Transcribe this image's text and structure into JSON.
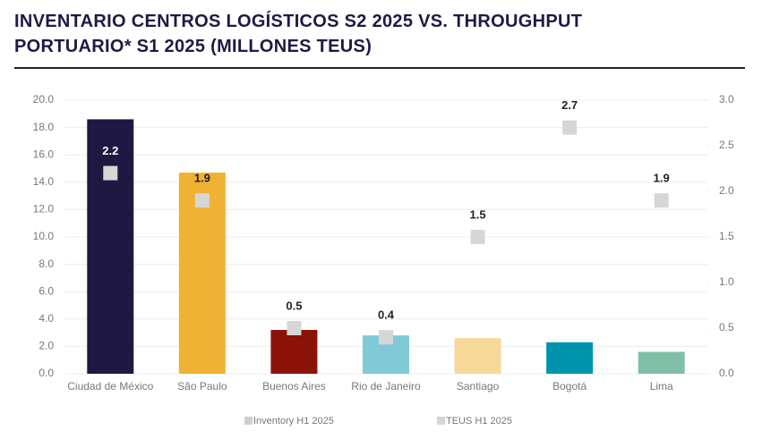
{
  "chart_data": {
    "type": "bar_scatter_combo",
    "title": "INVENTARIO CENTROS LOGÍSTICOS S2 2025 VS. THROUGHPUT PORTUARIO* S1 2025 (MILLONES TEUS)",
    "categories": [
      "Ciudad de México",
      "São Paulo",
      "Buenos Aires",
      "Rio de Janeiro",
      "Santiago",
      "Bogotá",
      "Lima"
    ],
    "series": [
      {
        "name": "Inventory H1 2025",
        "color": "#d0d0d0",
        "colors": [
          "#1e1842",
          "#f0b232",
          "#8b1207",
          "#80cad8",
          "#f7d899",
          "#0093ad",
          "#80bfa8"
        ],
        "values": [
          18.6,
          14.7,
          3.2,
          2.8,
          2.6,
          2.3,
          1.6
        ]
      },
      {
        "name": "TEUS H1 2025",
        "color": "#d6d6d6",
        "axis": "y2",
        "values": [
          2.2,
          1.9,
          0.5,
          0.4,
          1.5,
          2.7,
          1.9
        ]
      }
    ],
    "ylim": [
      0,
      20
    ],
    "yticks": [
      {
        "value": 0,
        "label": "0.0"
      },
      {
        "value": 2,
        "label": "2.0"
      },
      {
        "value": 4,
        "label": "4.0"
      },
      {
        "value": 6,
        "label": "6.0"
      },
      {
        "value": 8,
        "label": "8.0"
      },
      {
        "value": 10,
        "label": "10.0"
      },
      {
        "value": 12,
        "label": "12.0"
      },
      {
        "value": 14,
        "label": "14.0"
      },
      {
        "value": 16,
        "label": "16.0"
      },
      {
        "value": 18,
        "label": "18.0"
      },
      {
        "value": 20,
        "label": "20.0"
      }
    ],
    "y2lim": [
      0,
      3
    ],
    "y2ticks": [
      {
        "value": 0,
        "label": "0.0"
      },
      0.5,
      {
        "value": 1,
        "label": "1.0"
      },
      1.5,
      {
        "value": 2,
        "label": "2.0"
      },
      2.5,
      {
        "value": 3,
        "label": "3.0"
      }
    ],
    "grid": true
  }
}
